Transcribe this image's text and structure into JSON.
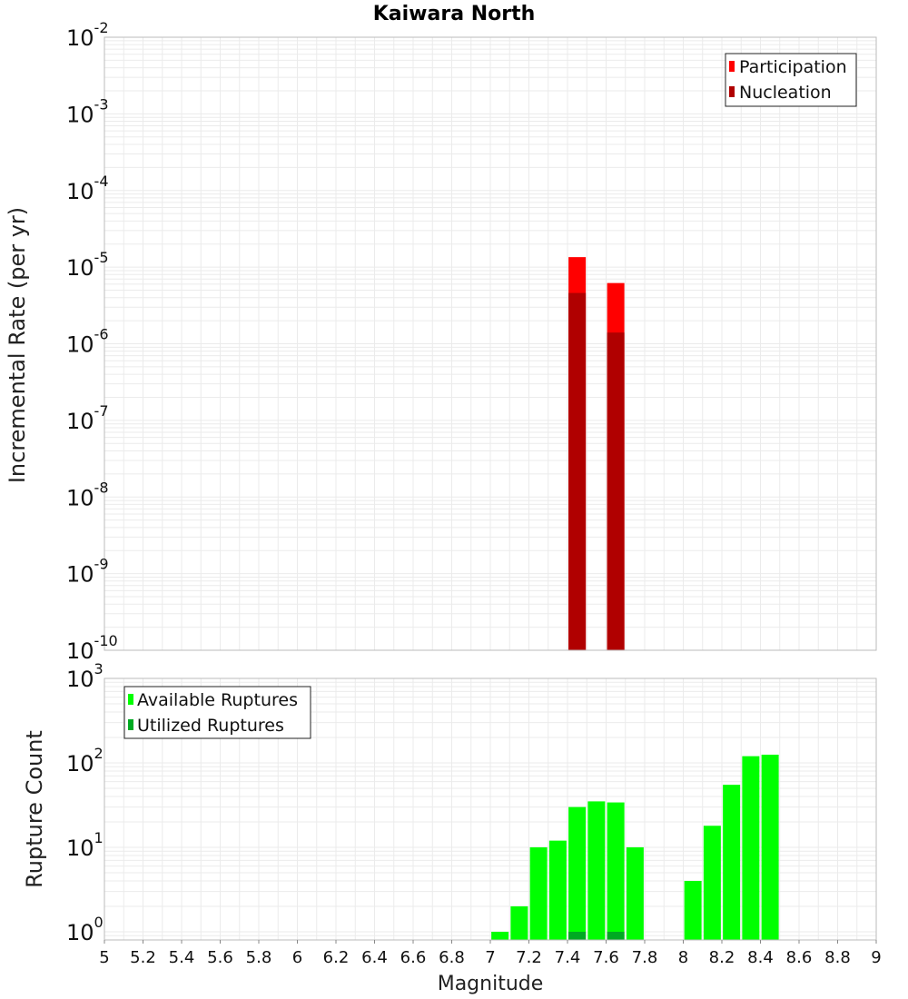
{
  "colors": {
    "participation": "#ff0000",
    "nucleation": "#b00000",
    "available": "#00ff00",
    "utilized": "#00aa22",
    "grid": "#ebebeb",
    "frame": "#bbbbbb"
  },
  "chart_data": [
    {
      "type": "bar",
      "title": "Kaiwara North",
      "xlabel": "Magnitude",
      "ylabel": "Incremental Rate (per yr)",
      "yscale": "log",
      "ylim": [
        1e-10,
        0.01
      ],
      "xlim": [
        5,
        9
      ],
      "y_ticks": [
        {
          "base": "10",
          "exp": "-2",
          "value": 0.01
        },
        {
          "base": "10",
          "exp": "-3",
          "value": 0.001
        },
        {
          "base": "10",
          "exp": "-4",
          "value": 0.0001
        },
        {
          "base": "10",
          "exp": "-5",
          "value": 1e-05
        },
        {
          "base": "10",
          "exp": "-6",
          "value": 1e-06
        },
        {
          "base": "10",
          "exp": "-7",
          "value": 1e-07
        },
        {
          "base": "10",
          "exp": "-8",
          "value": 1e-08
        },
        {
          "base": "10",
          "exp": "-9",
          "value": 1e-09
        },
        {
          "base": "10",
          "exp": "-10",
          "value": 1e-10
        }
      ],
      "legend": {
        "position": "top-right",
        "entries": [
          "Participation",
          "Nucleation"
        ]
      },
      "series": [
        {
          "name": "Participation",
          "x": [
            7.45,
            7.65
          ],
          "values": [
            1.35e-05,
            6.2e-06
          ]
        },
        {
          "name": "Nucleation",
          "x": [
            7.45,
            7.65
          ],
          "values": [
            4.6e-06,
            1.4e-06
          ]
        }
      ]
    },
    {
      "type": "bar",
      "title": "",
      "xlabel": "Magnitude",
      "ylabel": "Rupture Count",
      "yscale": "log",
      "ylim": [
        0.8,
        1000
      ],
      "xlim": [
        5,
        9
      ],
      "y_ticks": [
        {
          "base": "10",
          "exp": "3",
          "value": 1000
        },
        {
          "base": "10",
          "exp": "2",
          "value": 100
        },
        {
          "base": "10",
          "exp": "1",
          "value": 10
        },
        {
          "base": "10",
          "exp": "0",
          "value": 1
        }
      ],
      "x_tick_labels": [
        "5",
        "5.2",
        "5.4",
        "5.6",
        "5.8",
        "6",
        "6.2",
        "6.4",
        "6.6",
        "6.8",
        "7",
        "7.2",
        "7.4",
        "7.6",
        "7.8",
        "8",
        "8.2",
        "8.4",
        "8.6",
        "8.8",
        "9"
      ],
      "legend": {
        "position": "top-left",
        "entries": [
          "Available Ruptures",
          "Utilized Ruptures"
        ]
      },
      "series": [
        {
          "name": "Available Ruptures",
          "x": [
            7.05,
            7.15,
            7.25,
            7.35,
            7.45,
            7.55,
            7.65,
            7.75,
            8.05,
            8.15,
            8.25,
            8.35,
            8.45
          ],
          "values": [
            1,
            2,
            10,
            12,
            30,
            35,
            34,
            10,
            4,
            18,
            55,
            120,
            125
          ]
        },
        {
          "name": "Utilized Ruptures",
          "x": [
            7.45,
            7.65
          ],
          "values": [
            1,
            1
          ]
        }
      ]
    }
  ]
}
